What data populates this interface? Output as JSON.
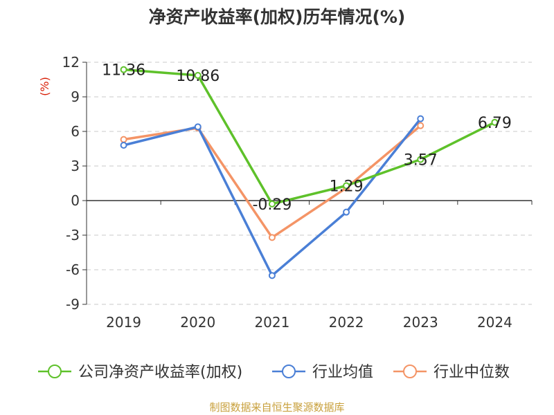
{
  "chart_data": {
    "type": "line",
    "title": "净资产收益率(加权)历年情况(%)",
    "ylabel": "(%)",
    "categories": [
      "2019",
      "2020",
      "2021",
      "2022",
      "2023",
      "2024"
    ],
    "ylim": [
      -9,
      12
    ],
    "yticks": [
      12,
      9,
      6,
      3,
      0,
      -3,
      -6,
      -9
    ],
    "grid": true,
    "legend_position": "bottom",
    "series": [
      {
        "name": "公司净资产收益率(加权)",
        "color": "#5ec12a",
        "values": [
          11.36,
          10.86,
          -0.29,
          1.29,
          3.57,
          6.79
        ],
        "labels": [
          "11.36",
          "10.86",
          "-0.29",
          "1.29",
          "3.57",
          "6.79"
        ]
      },
      {
        "name": "行业均值",
        "color": "#4a7fd6",
        "values": [
          4.8,
          6.4,
          -6.5,
          -1.0,
          7.1,
          null
        ]
      },
      {
        "name": "行业中位数",
        "color": "#f49466",
        "values": [
          5.3,
          6.3,
          -3.2,
          1.1,
          6.5,
          null
        ]
      }
    ]
  },
  "footer": {
    "source": "制图数据来自恒生聚源数据库"
  }
}
